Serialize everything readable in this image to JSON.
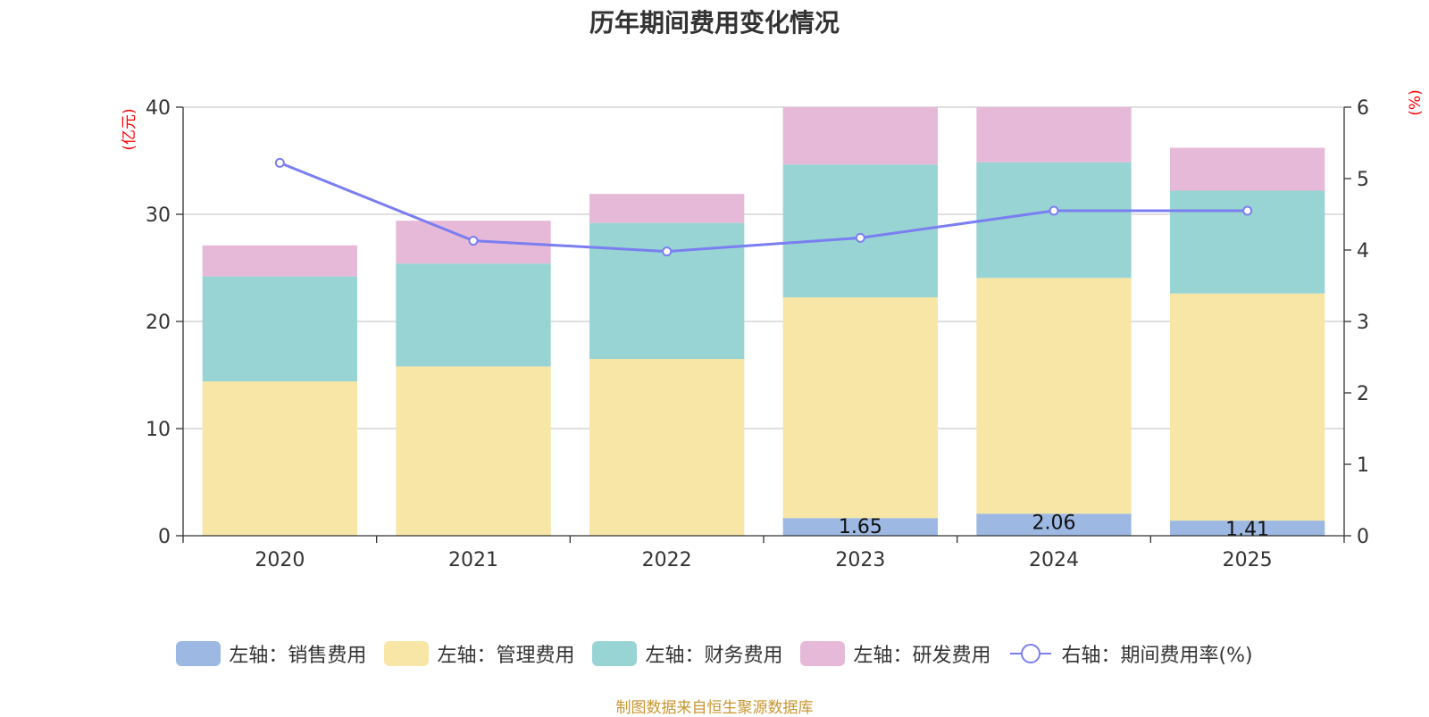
{
  "chart_data": {
    "type": "bar",
    "title": "历年期间费用变化情况",
    "categories": [
      "2020",
      "2021",
      "2022",
      "2023",
      "2024",
      "2025"
    ],
    "y_left": {
      "label": "(亿元)",
      "ylim": [
        0,
        40
      ],
      "ticks": [
        0,
        10,
        20,
        30,
        40
      ]
    },
    "y_right": {
      "label": "(%)",
      "ylim": [
        0,
        6
      ],
      "ticks": [
        0,
        1,
        2,
        3,
        4,
        5,
        6
      ]
    },
    "series": [
      {
        "name": "左轴：销售费用",
        "type": "bar",
        "stack": true,
        "axis": "left",
        "color": "#9db8e2",
        "values": [
          0,
          0,
          0,
          1.65,
          2.06,
          1.41
        ],
        "labels": [
          null,
          null,
          null,
          "1.65",
          "2.06",
          "1.41"
        ]
      },
      {
        "name": "左轴：管理费用",
        "type": "bar",
        "stack": true,
        "axis": "left",
        "color": "#f7e6a6",
        "values": [
          14.4,
          15.8,
          16.5,
          20.6,
          22.0,
          21.2
        ]
      },
      {
        "name": "左轴：财务费用",
        "type": "bar",
        "stack": true,
        "axis": "left",
        "color": "#98d4d4",
        "values": [
          9.8,
          9.6,
          12.7,
          12.4,
          10.8,
          9.6
        ]
      },
      {
        "name": "左轴：研发费用",
        "type": "bar",
        "stack": true,
        "axis": "left",
        "color": "#e7b9d8",
        "values": [
          2.9,
          4.0,
          2.7,
          5.4,
          5.2,
          4.0
        ]
      },
      {
        "name": "右轴：期间费用率(%)",
        "type": "line",
        "axis": "right",
        "color": "#7b7ef0",
        "values": [
          5.22,
          4.13,
          3.98,
          4.17,
          4.55,
          4.55
        ]
      }
    ],
    "legend": "bottom-center",
    "grid": true
  },
  "source_note": "制图数据来自恒生聚源数据库"
}
